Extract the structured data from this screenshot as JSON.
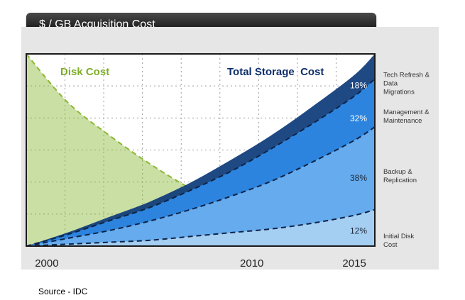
{
  "title": "$ / GB Acquisition Cost",
  "source": "Source - IDC",
  "chart_data": {
    "type": "area",
    "x_ticks": [
      2000,
      2010,
      2015
    ],
    "xlim": [
      1999,
      2016
    ],
    "ylim": [
      0,
      100
    ],
    "grid": true,
    "disk_cost": {
      "name": "Disk Cost",
      "color": "#8ab832",
      "x": [
        1999,
        2001,
        2003,
        2005,
        2007,
        2009,
        2011,
        2013
      ],
      "y": [
        100,
        75,
        58,
        43,
        30,
        19,
        10,
        3
      ]
    },
    "total_storage": {
      "name": "Total Storage  Cost",
      "label_color": "#0d2e6b",
      "x": [
        1999,
        2001,
        2003,
        2005,
        2007,
        2009,
        2011,
        2013,
        2015,
        2016
      ],
      "layers": [
        {
          "label": "Initial Disk Cost",
          "percent": "12%",
          "color": "#a9d0f2",
          "top": [
            0,
            1,
            2,
            3,
            5,
            7,
            9,
            12,
            16,
            19
          ]
        },
        {
          "label": "Backup & Replication",
          "percent": "38%",
          "color": "#6aafef",
          "top": [
            0,
            4,
            8,
            13,
            19,
            26,
            34,
            44,
            55,
            62
          ]
        },
        {
          "label": "Management & Maintenance",
          "percent": "32%",
          "color": "#2e8ae6",
          "top": [
            0,
            6,
            13,
            20,
            29,
            39,
            51,
            64,
            78,
            87
          ]
        },
        {
          "label": "Tech Refresh & Data Migrations",
          "percent": "18%",
          "color": "#0c3a78",
          "top": [
            0,
            7,
            15,
            23,
            33,
            45,
            58,
            73,
            89,
            100
          ]
        }
      ]
    }
  }
}
